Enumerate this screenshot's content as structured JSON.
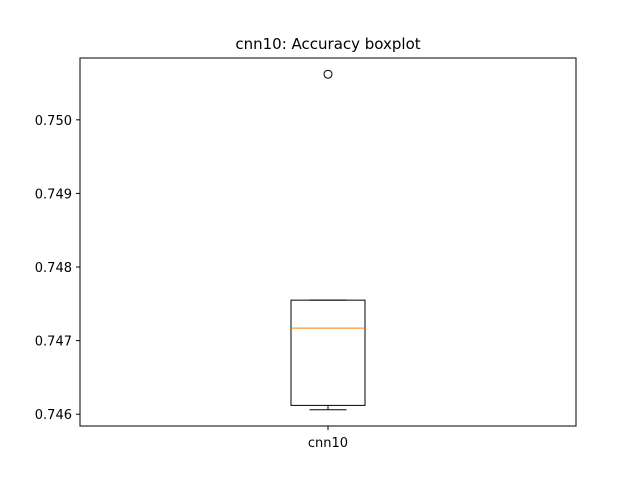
{
  "chart_data": {
    "type": "boxplot",
    "title": "cnn10: Accuracy boxplot",
    "xlabel": "",
    "ylabel": "",
    "categories": [
      "cnn10"
    ],
    "boxes": [
      {
        "name": "cnn10",
        "whisker_low": 0.74606,
        "q1": 0.74612,
        "median": 0.74717,
        "q3": 0.74755,
        "whisker_high": 0.74755,
        "outliers": [
          0.75062
        ]
      }
    ],
    "ylim": [
      0.74584,
      0.75084
    ],
    "yticks": [
      "0.746",
      "0.747",
      "0.748",
      "0.749",
      "0.750"
    ],
    "ytick_values": [
      0.746,
      0.747,
      0.748,
      0.749,
      0.75
    ],
    "grid": false,
    "colors": {
      "box": "#000000",
      "median": "#ff7f0e",
      "outlier": "#000000"
    }
  }
}
